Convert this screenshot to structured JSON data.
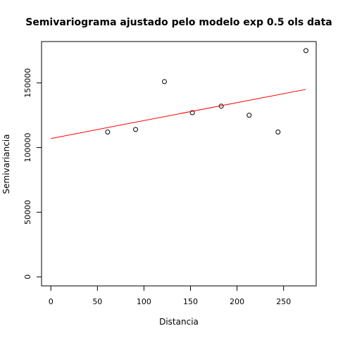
{
  "chart_data": {
    "type": "scatter",
    "title": "Semivariograma ajustado pelo modelo exp 0.5 ols data",
    "xlabel": "Distancia",
    "ylabel": "Semivariancia",
    "xlim": [
      -10,
      285
    ],
    "ylim": [
      -7000,
      182000
    ],
    "x_ticks": [
      {
        "value": 0,
        "label": "0"
      },
      {
        "value": 50,
        "label": "50"
      },
      {
        "value": 100,
        "label": "100"
      },
      {
        "value": 150,
        "label": "150"
      },
      {
        "value": 200,
        "label": "200"
      },
      {
        "value": 250,
        "label": "250"
      }
    ],
    "y_ticks": [
      {
        "value": 0,
        "label": "0"
      },
      {
        "value": 50000,
        "label": "50000"
      },
      {
        "value": 100000,
        "label": "100000"
      },
      {
        "value": 150000,
        "label": "150000"
      }
    ],
    "grid": false,
    "series": [
      {
        "type": "scatter",
        "marker": "open-circle",
        "color": "#000000",
        "x": [
          61,
          91,
          122,
          152,
          183,
          213,
          244,
          274
        ],
        "y": [
          112000,
          114000,
          151000,
          127000,
          132000,
          125000,
          112000,
          175000
        ]
      },
      {
        "type": "line",
        "color": "#ff0000",
        "x": [
          0,
          274
        ],
        "y": [
          107000,
          145000
        ]
      }
    ]
  }
}
